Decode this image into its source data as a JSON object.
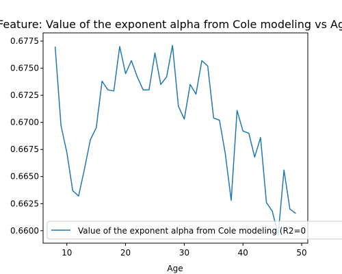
{
  "chart_data": {
    "type": "line",
    "title": "Feature: Value of the exponent alpha from Cole modeling vs Age",
    "xlabel": "Age",
    "ylabel": "",
    "xlim": [
      5.95,
      51.05
    ],
    "ylim": [
      0.65885,
      0.67826
    ],
    "x_ticks": [
      10,
      20,
      30,
      40,
      50
    ],
    "y_ticks": [
      0.66,
      0.6625,
      0.665,
      0.6675,
      0.67,
      0.6725,
      0.675,
      0.6775
    ],
    "x_tick_labels": [
      "10",
      "20",
      "30",
      "40",
      "50"
    ],
    "y_tick_labels": [
      "0.6600",
      "0.6625",
      "0.6650",
      "0.6675",
      "0.6700",
      "0.6725",
      "0.6750",
      "0.6775"
    ],
    "grid": false,
    "legend_position": "lower-right",
    "series": [
      {
        "name": "Value of the exponent alpha from Cole modeling (R2=0",
        "color": "#1f77b4",
        "x": [
          8,
          9,
          10,
          11,
          12,
          13,
          14,
          15,
          16,
          17,
          18,
          19,
          20,
          21,
          22,
          23,
          24,
          25,
          26,
          27,
          28,
          29,
          30,
          31,
          32,
          33,
          34,
          35,
          36,
          37,
          38,
          39,
          40,
          41,
          42,
          43,
          44,
          45,
          46,
          47,
          48,
          49
        ],
        "y": [
          0.677,
          0.6697,
          0.6672,
          0.6637,
          0.6632,
          0.6657,
          0.6684,
          0.6695,
          0.6738,
          0.673,
          0.6729,
          0.677,
          0.6745,
          0.6757,
          0.6742,
          0.673,
          0.673,
          0.6764,
          0.6735,
          0.6742,
          0.6771,
          0.6715,
          0.6703,
          0.6735,
          0.6726,
          0.6757,
          0.6752,
          0.6704,
          0.6702,
          0.6671,
          0.6628,
          0.6711,
          0.6692,
          0.669,
          0.6668,
          0.6686,
          0.6626,
          0.6618,
          0.6596,
          0.6656,
          0.662,
          0.6616
        ]
      }
    ]
  }
}
